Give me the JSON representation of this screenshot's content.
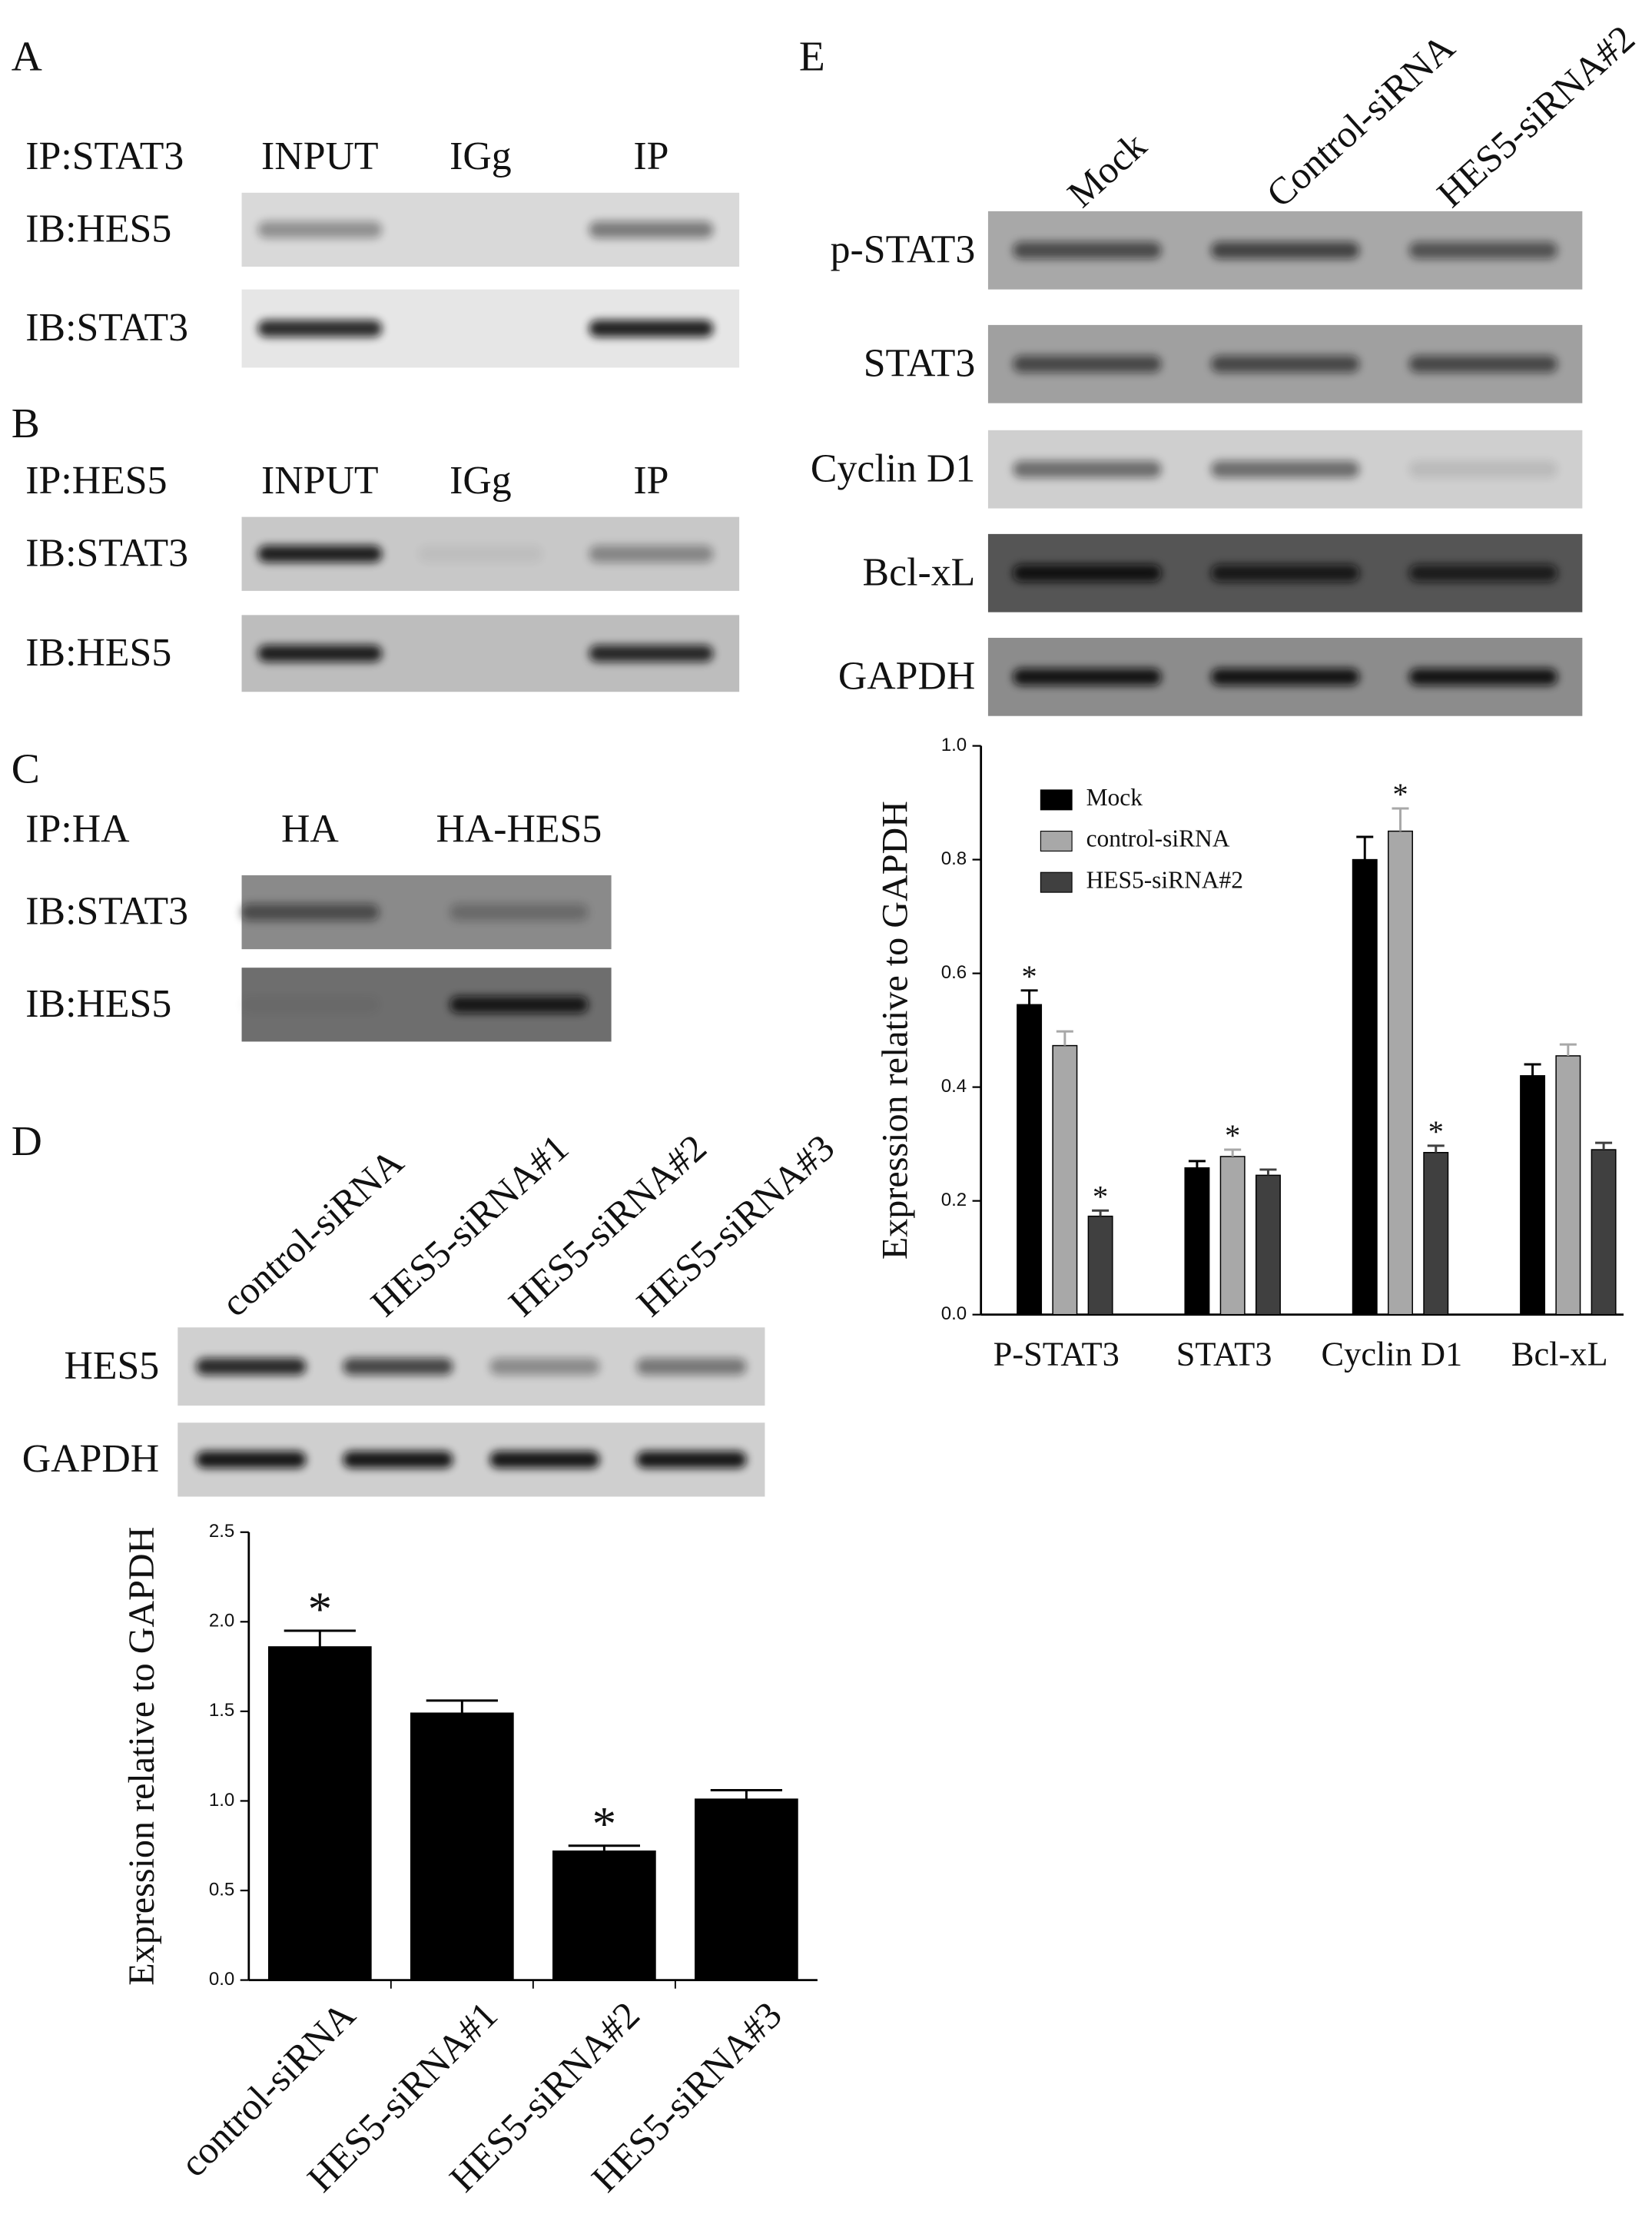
{
  "panels": [
    {
      "letter": "A",
      "header": "IP:STAT3",
      "lanes": [
        "INPUT",
        "IGg",
        "IP"
      ],
      "rows": [
        "IB:HES5",
        "IB:STAT3"
      ]
    },
    {
      "letter": "B",
      "header": "IP:HES5",
      "lanes": [
        "INPUT",
        "IGg",
        "IP"
      ],
      "rows": [
        "IB:STAT3",
        "IB:HES5"
      ]
    },
    {
      "letter": "C",
      "header": "IP:HA",
      "lanes": [
        "HA",
        "HA-HES5"
      ],
      "rows": [
        "IB:STAT3",
        "IB:HES5"
      ]
    },
    {
      "letter": "D",
      "lanes": [
        "control-siRNA",
        "HES5-siRNA#1",
        "HES5-siRNA#2",
        "HES5-siRNA#3"
      ],
      "rows": [
        "HES5",
        "GAPDH"
      ]
    },
    {
      "letter": "E",
      "lanes": [
        "Mock",
        "Control-siRNA",
        "HES5-siRNA#2"
      ],
      "rows": [
        "p-STAT3",
        "STAT3",
        "Cyclin D1",
        "Bcl-xL",
        "GAPDH"
      ]
    }
  ],
  "chart_data": [
    {
      "type": "bar",
      "y_label": "Expression relative to GAPDH",
      "categories": [
        "control-siRNA",
        "HES5-siRNA#1",
        "HES5-siRNA#2",
        "HES5-siRNA#3"
      ],
      "series": [
        {
          "color": "#000000",
          "values": [
            1.86,
            1.49,
            0.72,
            1.01
          ],
          "errors": [
            0.09,
            0.07,
            0.03,
            0.05
          ],
          "significance": [
            "*",
            null,
            "*",
            null
          ]
        }
      ],
      "ylim": [
        0,
        2.5
      ],
      "yticks": [
        {
          "value": 0,
          "label": "0.0"
        },
        {
          "value": 0.5,
          "label": "0.5"
        },
        {
          "value": 1,
          "label": "1.0"
        },
        {
          "value": 1.5,
          "label": "1.5"
        },
        {
          "value": 2,
          "label": "2.0"
        },
        {
          "value": 2.5,
          "label": "2.5"
        }
      ]
    },
    {
      "type": "bar",
      "y_label": "Expression relative to GAPDH",
      "categories": [
        "P-STAT3",
        "STAT3",
        "Cyclin D1",
        "Bcl-xL"
      ],
      "series": [
        {
          "name": "Mock",
          "color": "#000000",
          "values": [
            0.545,
            0.258,
            0.8,
            0.42
          ],
          "errors": [
            0.025,
            0.012,
            0.04,
            0.02
          ],
          "significance": [
            "*",
            null,
            null,
            null
          ]
        },
        {
          "name": "control-siRNA",
          "color": "#a8a8a8",
          "values": [
            0.473,
            0.278,
            0.85,
            0.455
          ],
          "errors": [
            0.025,
            0.012,
            0.04,
            0.02
          ],
          "significance": [
            null,
            "*",
            "*",
            null
          ]
        },
        {
          "name": "HES5-siRNA#2",
          "color": "#404040",
          "values": [
            0.173,
            0.245,
            0.285,
            0.29
          ],
          "errors": [
            0.01,
            0.01,
            0.012,
            0.012
          ],
          "significance": [
            "*",
            null,
            "*",
            null
          ]
        }
      ],
      "ylim": [
        0,
        1
      ],
      "yticks": [
        {
          "value": 0,
          "label": "0.0"
        },
        {
          "value": 0.2,
          "label": "0.2"
        },
        {
          "value": 0.4,
          "label": "0.4"
        },
        {
          "value": 0.6,
          "label": "0.6"
        },
        {
          "value": 0.8,
          "label": "0.8"
        },
        {
          "value": 1,
          "label": "1.0"
        }
      ],
      "legend": "upper left"
    }
  ]
}
